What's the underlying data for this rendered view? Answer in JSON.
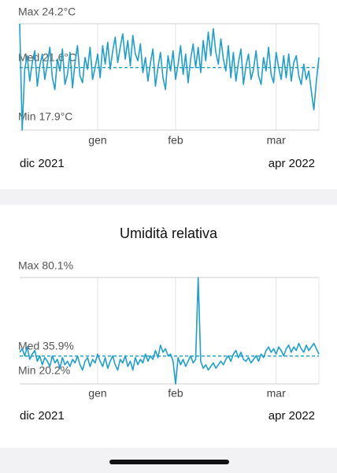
{
  "chart_data": [
    {
      "type": "line",
      "color": "#1e9fcc",
      "ylim": [
        17.9,
        24.2
      ],
      "yticks": [
        {
          "value": 24.2,
          "label": "Max 24.2°C"
        },
        {
          "value": 17.9,
          "label": "Min 17.9°C"
        }
      ],
      "mean_line": {
        "value": 21.6,
        "label": "Med 21.6°C"
      },
      "range_labels": [
        "dic 2021",
        "apr 2022"
      ],
      "categories": [
        null,
        null,
        null,
        null,
        null,
        null,
        null,
        null,
        null,
        null,
        null,
        null,
        null,
        null,
        null,
        null,
        null,
        null,
        null,
        null,
        null,
        null,
        null,
        null,
        null,
        null,
        null,
        null,
        null,
        null,
        null,
        "gen",
        null,
        null,
        null,
        null,
        null,
        null,
        null,
        null,
        null,
        null,
        null,
        null,
        null,
        null,
        null,
        null,
        null,
        null,
        null,
        null,
        null,
        null,
        null,
        null,
        null,
        null,
        null,
        null,
        null,
        null,
        "feb",
        null,
        null,
        null,
        null,
        null,
        null,
        null,
        null,
        null,
        null,
        null,
        null,
        null,
        null,
        null,
        null,
        null,
        null,
        null,
        null,
        null,
        null,
        null,
        null,
        null,
        null,
        null,
        null,
        null,
        null,
        null,
        null,
        null,
        null,
        null,
        null,
        null,
        null,
        null,
        "mar",
        null,
        null,
        null,
        null,
        null,
        null,
        null,
        null,
        null,
        null,
        null,
        null,
        null,
        null,
        null,
        null,
        null
      ],
      "values": [
        24.2,
        17.9,
        21.5,
        22.3,
        20.8,
        21.9,
        22.6,
        20.5,
        21.7,
        22.4,
        20.9,
        21.8,
        22.8,
        21.0,
        20.3,
        22.1,
        21.4,
        22.7,
        20.6,
        21.2,
        22.5,
        20.4,
        21.9,
        22.9,
        21.1,
        20.7,
        22.2,
        21.5,
        22.8,
        20.9,
        21.6,
        22.4,
        21.0,
        22.9,
        21.8,
        23.1,
        21.5,
        22.6,
        23.4,
        21.9,
        22.8,
        23.6,
        22.1,
        23.2,
        21.7,
        23.5,
        22.4,
        22.0,
        23.0,
        21.3,
        22.2,
        20.8,
        21.9,
        22.7,
        20.5,
        21.6,
        22.5,
        21.0,
        20.3,
        22.3,
        21.4,
        22.6,
        20.9,
        21.8,
        22.9,
        21.2,
        22.4,
        20.7,
        22.1,
        23.0,
        21.6,
        22.8,
        21.3,
        23.2,
        22.0,
        23.7,
        22.3,
        23.9,
        22.5,
        21.8,
        23.3,
        22.1,
        21.4,
        22.9,
        21.0,
        22.5,
        20.8,
        21.9,
        22.7,
        20.6,
        21.7,
        22.4,
        20.9,
        21.5,
        22.6,
        21.1,
        20.6,
        22.2,
        21.4,
        22.8,
        21.2,
        20.7,
        22.5,
        21.6,
        20.9,
        22.3,
        21.0,
        22.4,
        20.8,
        21.9,
        22.3,
        21.1,
        20.6,
        21.8,
        20.9,
        21.4,
        20.2,
        19.1,
        20.8,
        22.2
      ]
    },
    {
      "type": "line",
      "title": "Umidità relativa",
      "color": "#1e9fcc",
      "ylim": [
        20.2,
        80.1
      ],
      "yticks": [
        {
          "value": 80.1,
          "label": "Max 80.1%"
        },
        {
          "value": 20.2,
          "label": "Min 20.2%"
        }
      ],
      "mean_line": {
        "value": 35.9,
        "label": "Med 35.9%"
      },
      "range_labels": [
        "dic 2021",
        "apr 2022"
      ],
      "categories": [
        null,
        null,
        null,
        null,
        null,
        null,
        null,
        null,
        null,
        null,
        null,
        null,
        null,
        null,
        null,
        null,
        null,
        null,
        null,
        null,
        null,
        null,
        null,
        null,
        null,
        null,
        null,
        null,
        null,
        null,
        null,
        "gen",
        null,
        null,
        null,
        null,
        null,
        null,
        null,
        null,
        null,
        null,
        null,
        null,
        null,
        null,
        null,
        null,
        null,
        null,
        null,
        null,
        null,
        null,
        null,
        null,
        null,
        null,
        null,
        null,
        null,
        null,
        "feb",
        null,
        null,
        null,
        null,
        null,
        null,
        null,
        null,
        null,
        null,
        null,
        null,
        null,
        null,
        null,
        null,
        null,
        null,
        null,
        null,
        null,
        null,
        null,
        null,
        null,
        null,
        null,
        null,
        null,
        null,
        null,
        null,
        null,
        null,
        null,
        null,
        null,
        null,
        null,
        "mar",
        null,
        null,
        null,
        null,
        null,
        null,
        null,
        null,
        null,
        null,
        null,
        null,
        null,
        null,
        null,
        null,
        null
      ],
      "values": [
        38,
        40,
        36,
        41,
        34,
        37,
        39,
        33,
        36,
        31,
        35,
        33,
        30,
        36,
        32,
        34,
        29,
        35,
        31,
        33,
        30,
        34,
        32,
        36,
        31,
        28,
        33,
        35,
        30,
        34,
        32,
        37,
        33,
        30,
        35,
        29,
        33,
        36,
        31,
        28,
        34,
        32,
        36,
        30,
        33,
        28,
        35,
        31,
        34,
        32,
        37,
        33,
        36,
        34,
        39,
        35,
        42,
        38,
        40,
        36,
        37,
        33,
        20.2,
        35,
        31,
        34,
        30,
        33,
        36,
        32,
        34,
        80.1,
        33,
        29,
        31,
        28,
        30,
        32,
        29,
        31,
        33,
        31,
        34,
        36,
        33,
        37,
        39,
        35,
        38,
        34,
        33,
        35,
        32,
        34,
        36,
        33,
        37,
        35,
        39,
        41,
        38,
        40,
        37,
        41,
        39,
        36,
        40,
        42,
        38,
        41,
        39,
        43,
        40,
        38,
        42,
        39,
        41,
        43,
        40,
        37
      ]
    }
  ]
}
